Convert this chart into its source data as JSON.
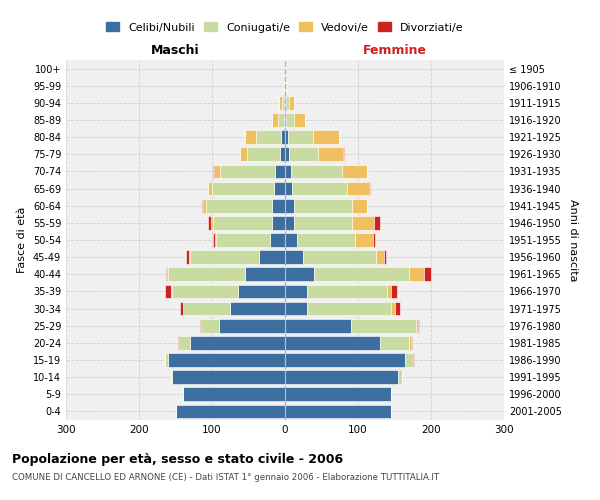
{
  "age_groups": [
    "0-4",
    "5-9",
    "10-14",
    "15-19",
    "20-24",
    "25-29",
    "30-34",
    "35-39",
    "40-44",
    "45-49",
    "50-54",
    "55-59",
    "60-64",
    "65-69",
    "70-74",
    "75-79",
    "80-84",
    "85-89",
    "90-94",
    "95-99",
    "100+"
  ],
  "birth_years": [
    "2001-2005",
    "1996-2000",
    "1991-1995",
    "1986-1990",
    "1981-1985",
    "1976-1980",
    "1971-1975",
    "1966-1970",
    "1961-1965",
    "1956-1960",
    "1951-1955",
    "1946-1950",
    "1941-1945",
    "1936-1940",
    "1931-1935",
    "1926-1930",
    "1921-1925",
    "1916-1920",
    "1911-1915",
    "1906-1910",
    "≤ 1905"
  ],
  "male": {
    "celibe": [
      150,
      140,
      155,
      160,
      130,
      90,
      75,
      65,
      55,
      35,
      20,
      18,
      18,
      15,
      14,
      7,
      5,
      2,
      1,
      0,
      0
    ],
    "coniugato": [
      0,
      0,
      1,
      5,
      15,
      25,
      65,
      90,
      105,
      95,
      75,
      80,
      90,
      85,
      75,
      45,
      35,
      8,
      3,
      1,
      0
    ],
    "vedovo": [
      0,
      0,
      0,
      0,
      0,
      0,
      0,
      1,
      1,
      1,
      1,
      3,
      4,
      5,
      8,
      10,
      15,
      8,
      4,
      1,
      0
    ],
    "divorziato": [
      0,
      0,
      0,
      0,
      1,
      1,
      4,
      8,
      2,
      4,
      2,
      5,
      2,
      1,
      1,
      0,
      0,
      0,
      0,
      0,
      0
    ]
  },
  "female": {
    "nubile": [
      145,
      145,
      155,
      165,
      130,
      90,
      30,
      30,
      40,
      25,
      16,
      12,
      12,
      10,
      8,
      5,
      4,
      2,
      1,
      0,
      0
    ],
    "coniugata": [
      0,
      0,
      5,
      10,
      40,
      90,
      115,
      110,
      130,
      100,
      80,
      80,
      80,
      75,
      70,
      40,
      35,
      10,
      4,
      1,
      0
    ],
    "vedova": [
      0,
      0,
      0,
      1,
      2,
      2,
      5,
      5,
      20,
      10,
      25,
      30,
      20,
      30,
      35,
      35,
      35,
      15,
      8,
      2,
      0
    ],
    "divorziata": [
      0,
      0,
      0,
      1,
      2,
      2,
      8,
      8,
      10,
      4,
      2,
      8,
      1,
      1,
      0,
      1,
      0,
      1,
      0,
      0,
      0
    ]
  },
  "colors": {
    "celibe": "#3d6ea0",
    "coniugato": "#c8dba0",
    "vedovo": "#f0c060",
    "divorziato": "#cc2222"
  },
  "legend_labels": [
    "Celibi/Nubili",
    "Coniugati/e",
    "Vedovi/e",
    "Divorziati/e"
  ],
  "title": "Popolazione per età, sesso e stato civile - 2006",
  "subtitle": "COMUNE DI CANCELLO ED ARNONE (CE) - Dati ISTAT 1° gennaio 2006 - Elaborazione TUTTITALIA.IT",
  "xlabel_left": "Maschi",
  "xlabel_right": "Femmine",
  "ylabel_left": "Fasce di età",
  "ylabel_right": "Anni di nascita",
  "xlim": 300,
  "bg_color": "#f0f0f0",
  "grid_color": "#cccccc"
}
